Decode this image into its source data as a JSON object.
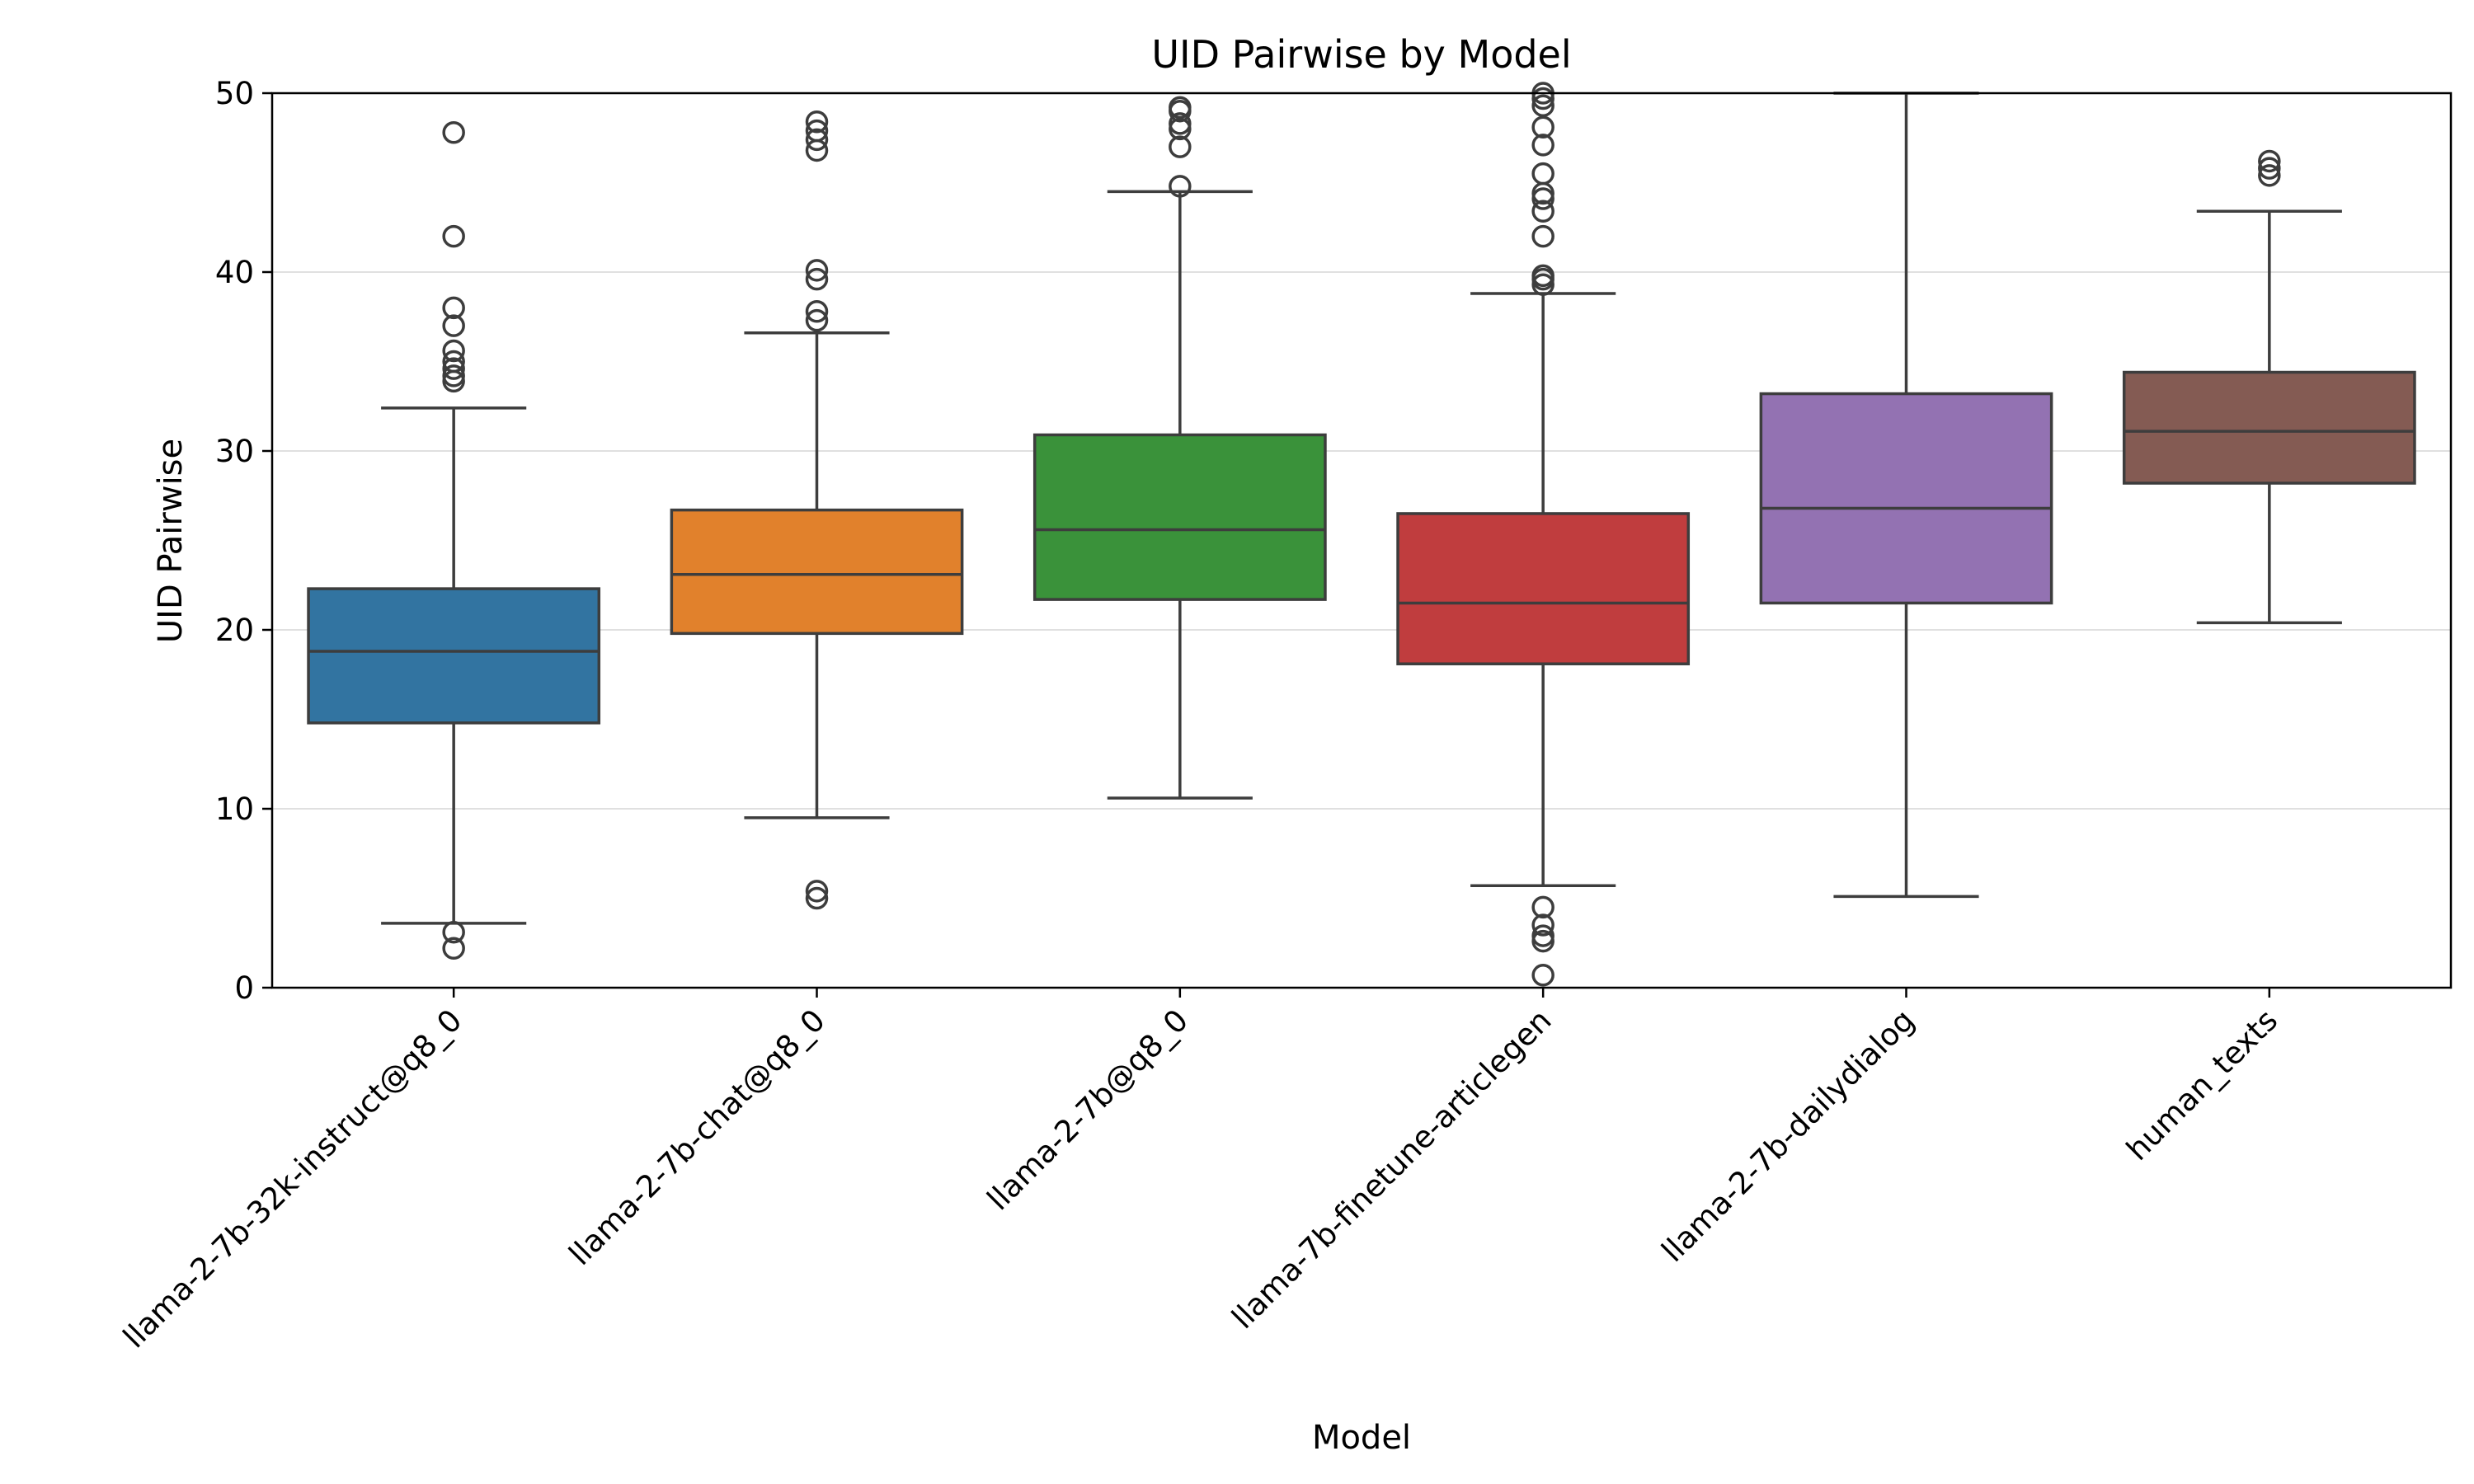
{
  "chart_data": {
    "type": "box",
    "title": "UID Pairwise by Model",
    "xlabel": "Model",
    "ylabel": "UID Pairwise",
    "ylim": [
      0,
      50
    ],
    "yticks": [
      0,
      10,
      20,
      30,
      40,
      50
    ],
    "grid": "y",
    "categories": [
      "llama-2-7b-32k-instruct@q8_0",
      "llama-2-7b-chat@q8_0",
      "llama-2-7b@q8_0",
      "llama-7b-finetune-articlegen",
      "llama-2-7b-dailydialog",
      "human_texts"
    ],
    "colors": [
      "#3274a1",
      "#e1812c",
      "#3a923a",
      "#c03d3e",
      "#9372b2",
      "#845b53"
    ],
    "boxes": [
      {
        "whisker_low": 3.6,
        "q1": 14.8,
        "median": 18.8,
        "q3": 22.3,
        "whisker_high": 32.4,
        "outliers": [
          2.2,
          3.1,
          33.9,
          34.2,
          34.6,
          35.0,
          35.6,
          37.0,
          38.0,
          42.0,
          47.8
        ]
      },
      {
        "whisker_low": 9.5,
        "q1": 19.8,
        "median": 23.1,
        "q3": 26.7,
        "whisker_high": 36.6,
        "outliers": [
          5.0,
          5.4,
          37.3,
          37.8,
          39.6,
          40.1,
          46.8,
          47.4,
          47.9,
          48.4
        ]
      },
      {
        "whisker_low": 10.6,
        "q1": 21.7,
        "median": 25.6,
        "q3": 30.9,
        "whisker_high": 44.5,
        "outliers": [
          44.8,
          47.0,
          48.0,
          48.3,
          49.0,
          49.2
        ]
      },
      {
        "whisker_low": 5.7,
        "q1": 18.1,
        "median": 21.5,
        "q3": 26.5,
        "whisker_high": 38.8,
        "outliers": [
          0.7,
          2.6,
          2.9,
          3.5,
          4.5,
          39.3,
          39.6,
          39.8,
          42.0,
          43.4,
          44.1,
          44.4,
          45.5,
          47.1,
          48.1,
          49.3,
          49.7,
          50.0
        ]
      },
      {
        "whisker_low": 5.1,
        "q1": 21.5,
        "median": 26.8,
        "q3": 33.2,
        "whisker_high": 50.0,
        "outliers": []
      },
      {
        "whisker_low": 20.4,
        "q1": 28.2,
        "median": 31.1,
        "q3": 34.4,
        "whisker_high": 43.4,
        "outliers": [
          45.4,
          45.8,
          46.2
        ]
      }
    ]
  }
}
